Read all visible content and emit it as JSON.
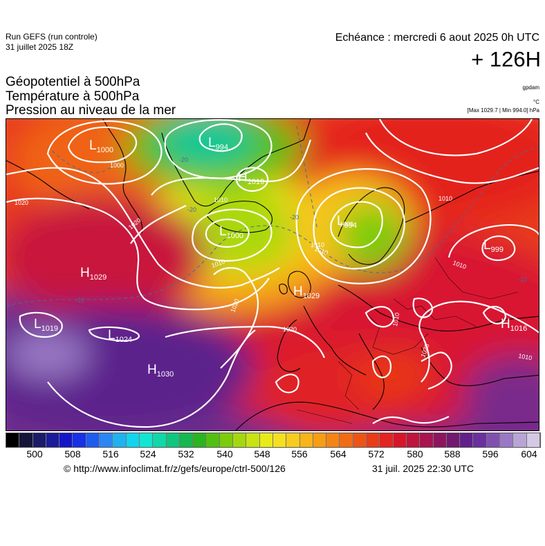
{
  "header": {
    "run_title": "Run GEFS (run controle)",
    "run_date": "31 juillet 2025 18Z",
    "echeance": "Echéance : mercredi 6 aout 2025 0h UTC",
    "lead_time": "+ 126H"
  },
  "parameters": [
    "Géopotentiel à 500hPa",
    "Température à 500hPa",
    "Pression au niveau de la mer"
  ],
  "units": {
    "geopotential": "gpdam",
    "temperature": "°C",
    "pressure_range": "[Max 1029.7 | Min 994.0] hPa"
  },
  "colorbar": {
    "ticks": [
      "500",
      "508",
      "516",
      "524",
      "532",
      "540",
      "548",
      "556",
      "564",
      "572",
      "580",
      "588",
      "596",
      "604"
    ],
    "colors": [
      "#000000",
      "#15153a",
      "#1b1b6a",
      "#1c1c9a",
      "#1515c8",
      "#1730e8",
      "#1e5cf0",
      "#2b86f4",
      "#1fb2f0",
      "#11d4ee",
      "#12e6d2",
      "#10d8a8",
      "#10c67e",
      "#16b850",
      "#2ab420",
      "#52c010",
      "#7ccc0c",
      "#a4d80e",
      "#c8e214",
      "#e8ea18",
      "#f4e020",
      "#f8cc1c",
      "#f8b418",
      "#f89c14",
      "#f48414",
      "#f06c14",
      "#ec5416",
      "#e83c18",
      "#e42420",
      "#d81428",
      "#c0143c",
      "#a81450",
      "#8e1460",
      "#741870",
      "#62208a",
      "#6a30a0",
      "#8050b0",
      "#9a78c4",
      "#b8a4d6",
      "#d4c8e4"
    ]
  },
  "map": {
    "pressure_systems": [
      {
        "type": "L",
        "value": "1000"
      },
      {
        "type": "L",
        "value": "994"
      },
      {
        "type": "H",
        "value": "1019"
      },
      {
        "type": "L",
        "value": "1000"
      },
      {
        "type": "L",
        "value": "994"
      },
      {
        "type": "L",
        "value": "999"
      },
      {
        "type": "H",
        "value": "1029"
      },
      {
        "type": "H",
        "value": "1029"
      },
      {
        "type": "L",
        "value": "1019"
      },
      {
        "type": "L",
        "value": "1024"
      },
      {
        "type": "H",
        "value": "1030"
      },
      {
        "type": "H",
        "value": "1016"
      }
    ],
    "isobar_labels": [
      "1020",
      "1020",
      "1010",
      "1010",
      "1010",
      "1020",
      "1010",
      "1020",
      "1010",
      "1010",
      "1020",
      "1000",
      "1000",
      "1010",
      "1010"
    ],
    "isotherm_labels": [
      "-20",
      "-20",
      "-10",
      "-20",
      "-10"
    ]
  },
  "footer": {
    "copyright": "© http://www.infoclimat.fr/z/gefs/europe/ctrl-500/126",
    "issued": "31 juil. 2025 22:30 UTC"
  }
}
